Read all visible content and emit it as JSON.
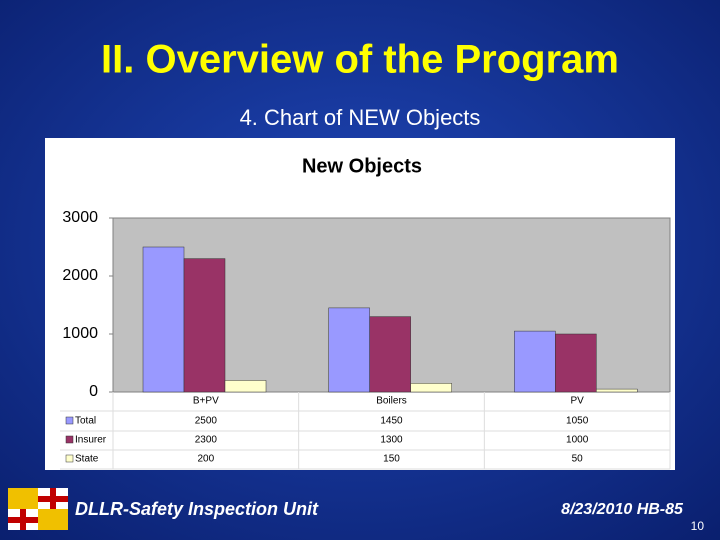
{
  "slide": {
    "title": "II. Overview of the Program",
    "subtitle": "4. Chart of NEW Objects",
    "footer_left": "DLLR-Safety Inspection Unit",
    "footer_right": "8/23/2010 HB-85",
    "page_number": "10"
  },
  "chart_data": {
    "type": "bar",
    "title": "New Objects",
    "categories": [
      "B+PV",
      "Boilers",
      "PV"
    ],
    "series": [
      {
        "name": "Total",
        "color": "#9999ff",
        "values": [
          2500,
          1450,
          1050
        ]
      },
      {
        "name": "Insurer",
        "color": "#993366",
        "values": [
          2300,
          1300,
          1000
        ]
      },
      {
        "name": "State",
        "color": "#ffffcc",
        "values": [
          200,
          150,
          50
        ]
      }
    ],
    "ylim": [
      0,
      3000
    ],
    "yticks": [
      0,
      1000,
      2000,
      3000
    ],
    "grid": false
  }
}
